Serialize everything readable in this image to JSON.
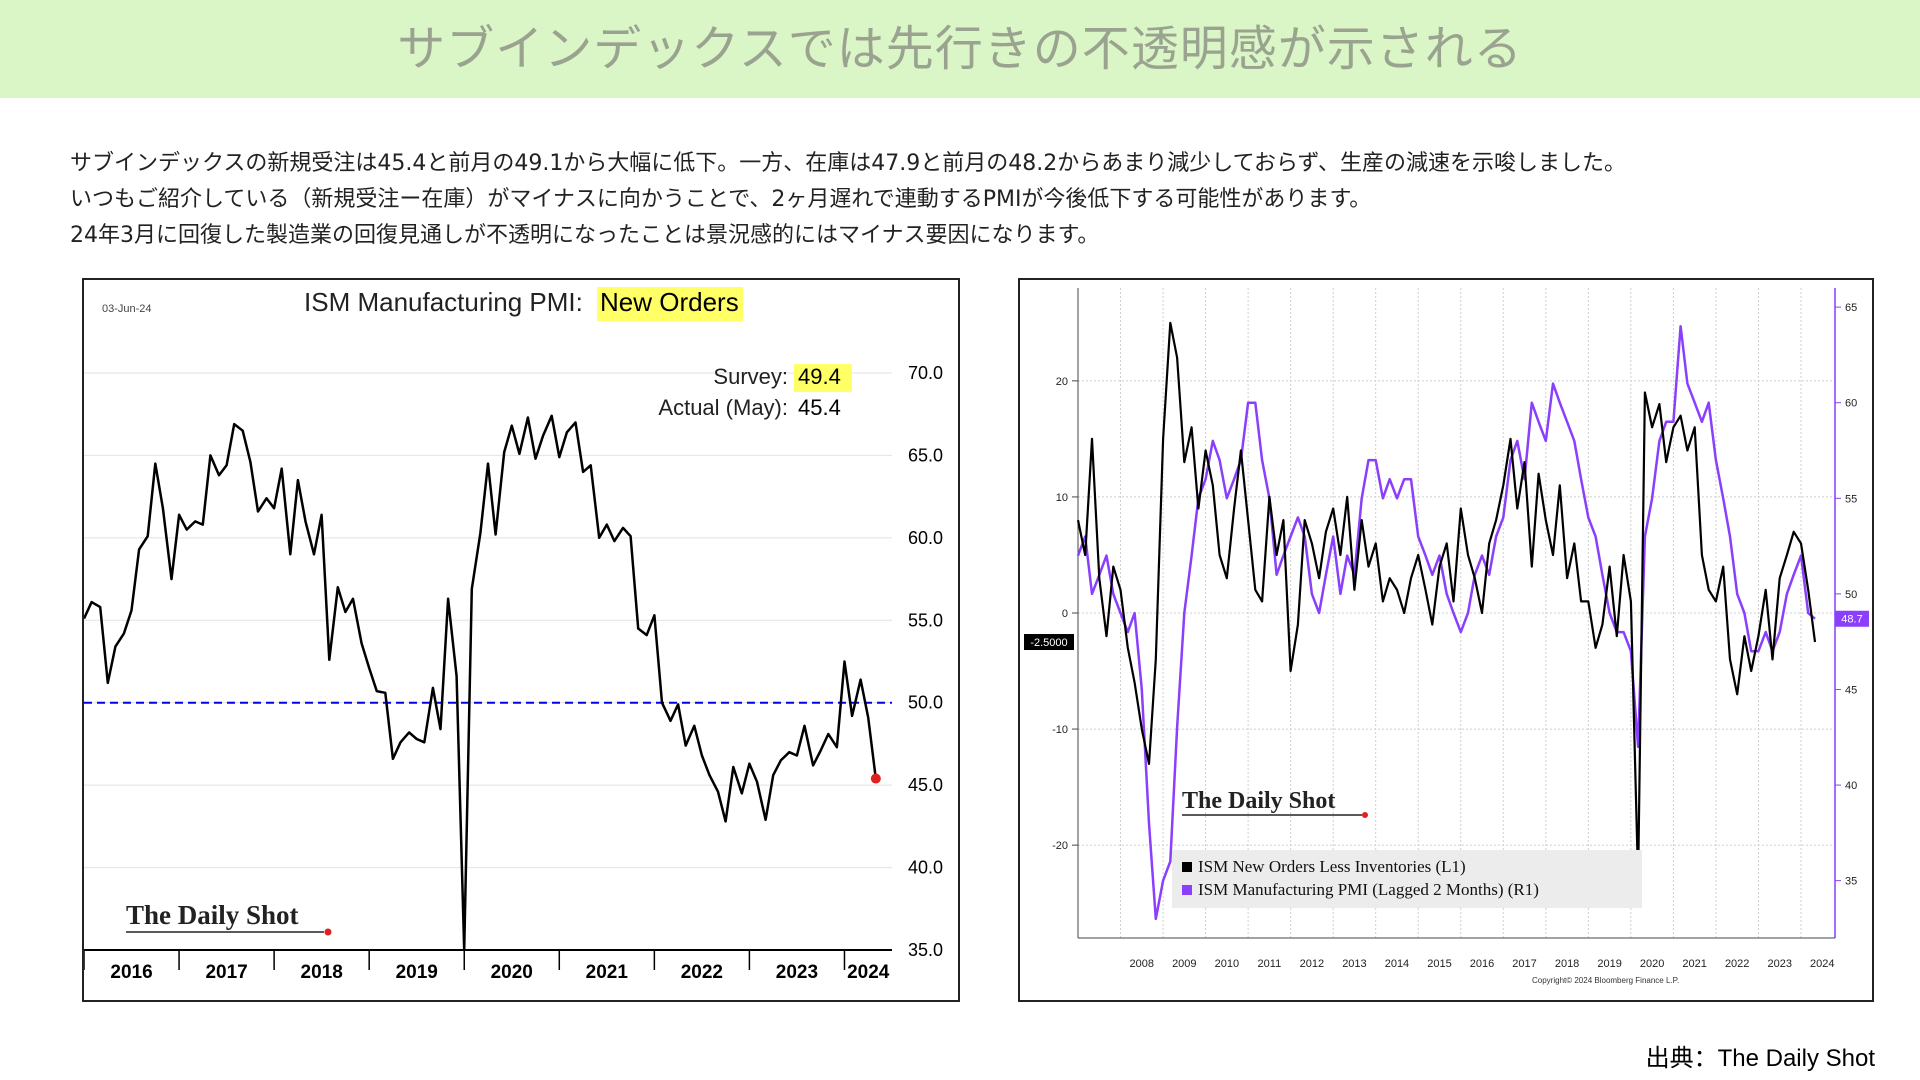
{
  "banner": {
    "title": "サブインデックスでは先行きの不透明感が示される"
  },
  "description": {
    "lines": [
      "サブインデックスの新規受注は45.4と前月の49.1から大幅に低下。一方、在庫は47.9と前月の48.2からあまり減少しておらず、生産の減速を示唆しました。",
      "いつもご紹介している（新規受注ー在庫）がマイナスに向かうことで、2ヶ月遅れで連動するPMIが今後低下する可能性があります。",
      "24年3月に回復した製造業の回復見通しが不透明になったことは景況感的にはマイナス要因になります。"
    ]
  },
  "source": "出典：The Daily Shot",
  "chart_data": [
    {
      "type": "line",
      "title_prefix": "ISM Manufacturing PMI: ",
      "title_highlight": "New Orders",
      "date_label": "03-Jun-24",
      "brand": "The Daily Shot",
      "survey_label": "Survey:",
      "survey_value": "49.4",
      "actual_label": "Actual (May):",
      "actual_value": "45.4",
      "x_ticks": [
        "2016",
        "2017",
        "2018",
        "2019",
        "2020",
        "2021",
        "2022",
        "2023",
        "2024"
      ],
      "y_ticks": [
        "70.0",
        "65.0",
        "60.0",
        "55.0",
        "50.0",
        "45.0",
        "40.0",
        "35.0"
      ],
      "ylim": [
        35,
        72
      ],
      "xlim": [
        2016.0,
        2024.5
      ],
      "reference_line": 50,
      "colors": {
        "line": "#000000",
        "reference": "#0000ee",
        "marker": "#e02020",
        "highlight": "#ffff66"
      },
      "series": [
        {
          "x": [
            2016.0,
            2016.08,
            2016.17,
            2016.25,
            2016.33,
            2016.42,
            2016.5,
            2016.58,
            2016.67,
            2016.75,
            2016.83,
            2016.92,
            2017.0,
            2017.08,
            2017.17,
            2017.25,
            2017.33,
            2017.42,
            2017.5,
            2017.58,
            2017.67,
            2017.75,
            2017.83,
            2017.92,
            2018.0,
            2018.08,
            2018.17,
            2018.25,
            2018.33,
            2018.42,
            2018.5,
            2018.58,
            2018.67,
            2018.75,
            2018.83,
            2018.92,
            2019.0,
            2019.08,
            2019.17,
            2019.25,
            2019.33,
            2019.42,
            2019.5,
            2019.58,
            2019.67,
            2019.75,
            2019.83,
            2019.92,
            2020.0,
            2020.08,
            2020.17,
            2020.25,
            2020.33,
            2020.42,
            2020.5,
            2020.58,
            2020.67,
            2020.75,
            2020.83,
            2020.92,
            2021.0,
            2021.08,
            2021.17,
            2021.25,
            2021.33,
            2021.42,
            2021.5,
            2021.58,
            2021.67,
            2021.75,
            2021.83,
            2021.92,
            2022.0,
            2022.08,
            2022.17,
            2022.25,
            2022.33,
            2022.42,
            2022.5,
            2022.58,
            2022.67,
            2022.75,
            2022.83,
            2022.92,
            2023.0,
            2023.08,
            2023.17,
            2023.25,
            2023.33,
            2023.42,
            2023.5,
            2023.58,
            2023.67,
            2023.75,
            2023.83,
            2023.92,
            2024.0,
            2024.08,
            2024.17,
            2024.25,
            2024.33
          ],
          "y": [
            55.1,
            56.1,
            55.8,
            51.2,
            53.4,
            54.2,
            55.6,
            59.3,
            60.1,
            64.5,
            61.8,
            57.5,
            61.4,
            60.5,
            61.0,
            60.8,
            65.0,
            63.8,
            64.4,
            66.9,
            66.5,
            64.6,
            61.6,
            62.4,
            61.8,
            64.2,
            59.0,
            63.5,
            61.0,
            59.0,
            61.4,
            52.6,
            57.0,
            55.5,
            56.3,
            53.6,
            52.1,
            50.7,
            50.6,
            46.6,
            47.6,
            48.2,
            47.8,
            47.6,
            50.9,
            48.4,
            56.3,
            51.6,
            35.0,
            56.9,
            60.3,
            64.5,
            60.2,
            65.2,
            66.8,
            65.1,
            67.3,
            64.8,
            66.2,
            67.4,
            64.9,
            66.4,
            67.0,
            64.0,
            64.4,
            60.0,
            60.8,
            59.8,
            60.6,
            60.1,
            54.5,
            54.1,
            55.3,
            50.0,
            48.9,
            49.9,
            47.4,
            48.6,
            46.8,
            45.6,
            44.6,
            42.8,
            46.1,
            44.5,
            46.3,
            45.2,
            42.9,
            45.6,
            46.5,
            47.0,
            46.8,
            48.6,
            46.2,
            47.1,
            48.1,
            47.3,
            52.5,
            49.2,
            51.4,
            49.1,
            45.4
          ]
        }
      ]
    },
    {
      "type": "line",
      "brand": "The Daily Shot",
      "copyright": "Copyright© 2024 Bloomberg Finance L.P.",
      "x_ticks": [
        "2008",
        "2009",
        "2010",
        "2011",
        "2012",
        "2013",
        "2014",
        "2015",
        "2016",
        "2017",
        "2018",
        "2019",
        "2020",
        "2021",
        "2022",
        "2023",
        "2024"
      ],
      "left_y_ticks": [
        "20",
        "10",
        "0",
        "-10",
        "-20"
      ],
      "right_y_ticks": [
        "65",
        "60",
        "55",
        "50",
        "45",
        "40",
        "35"
      ],
      "left_ylim": [
        -28,
        28
      ],
      "right_ylim": [
        32,
        66
      ],
      "xlim": [
        2007.0,
        2024.8
      ],
      "left_current_label": "-2.5000",
      "right_current_label": "48.7",
      "colors": {
        "l1": "#000000",
        "r1": "#8a3ffc"
      },
      "series": [
        {
          "name": "ISM New Orders Less Inventories (L1)",
          "axis": "left",
          "x": [
            2007.0,
            2007.17,
            2007.33,
            2007.5,
            2007.67,
            2007.83,
            2008.0,
            2008.17,
            2008.33,
            2008.5,
            2008.67,
            2008.83,
            2009.0,
            2009.17,
            2009.33,
            2009.5,
            2009.67,
            2009.83,
            2010.0,
            2010.17,
            2010.33,
            2010.5,
            2010.67,
            2010.83,
            2011.0,
            2011.17,
            2011.33,
            2011.5,
            2011.67,
            2011.83,
            2012.0,
            2012.17,
            2012.33,
            2012.5,
            2012.67,
            2012.83,
            2013.0,
            2013.17,
            2013.33,
            2013.5,
            2013.67,
            2013.83,
            2014.0,
            2014.17,
            2014.33,
            2014.5,
            2014.67,
            2014.83,
            2015.0,
            2015.17,
            2015.33,
            2015.5,
            2015.67,
            2015.83,
            2016.0,
            2016.17,
            2016.33,
            2016.5,
            2016.67,
            2016.83,
            2017.0,
            2017.17,
            2017.33,
            2017.5,
            2017.67,
            2017.83,
            2018.0,
            2018.17,
            2018.33,
            2018.5,
            2018.67,
            2018.83,
            2019.0,
            2019.17,
            2019.33,
            2019.5,
            2019.67,
            2019.83,
            2020.0,
            2020.17,
            2020.33,
            2020.5,
            2020.67,
            2020.83,
            2021.0,
            2021.17,
            2021.33,
            2021.5,
            2021.67,
            2021.83,
            2022.0,
            2022.17,
            2022.33,
            2022.5,
            2022.67,
            2022.83,
            2023.0,
            2023.17,
            2023.33,
            2023.5,
            2023.67,
            2023.83,
            2024.0,
            2024.17,
            2024.33
          ],
          "y": [
            8,
            5,
            15,
            3,
            -2,
            4,
            2,
            -3,
            -6,
            -10,
            -13,
            -4,
            15,
            25,
            22,
            13,
            16,
            9,
            14,
            11,
            5,
            3,
            9,
            14,
            8,
            2,
            1,
            10,
            5,
            8,
            -5,
            -1,
            8,
            6,
            3,
            7,
            9,
            5,
            10,
            2,
            8,
            4,
            6,
            1,
            3,
            2,
            0,
            3,
            5,
            2,
            -1,
            4,
            6,
            1,
            9,
            5,
            3,
            0,
            6,
            8,
            11,
            15,
            9,
            13,
            4,
            12,
            8,
            5,
            11,
            3,
            6,
            1,
            1,
            -3,
            -1,
            4,
            -2,
            5,
            1,
            -23,
            19,
            16,
            18,
            13,
            16,
            17,
            14,
            16,
            5,
            2,
            1,
            4,
            -4,
            -7,
            -2,
            -5,
            -2,
            2,
            -4,
            3,
            5,
            7,
            6,
            2,
            -2.5
          ]
        },
        {
          "name": "ISM Manufacturing PMI (Lagged 2 Months) (R1)",
          "axis": "right",
          "x": [
            2007.0,
            2007.17,
            2007.33,
            2007.5,
            2007.67,
            2007.83,
            2008.0,
            2008.17,
            2008.33,
            2008.5,
            2008.67,
            2008.83,
            2009.0,
            2009.17,
            2009.33,
            2009.5,
            2009.67,
            2009.83,
            2010.0,
            2010.17,
            2010.33,
            2010.5,
            2010.67,
            2010.83,
            2011.0,
            2011.17,
            2011.33,
            2011.5,
            2011.67,
            2011.83,
            2012.0,
            2012.17,
            2012.33,
            2012.5,
            2012.67,
            2012.83,
            2013.0,
            2013.17,
            2013.33,
            2013.5,
            2013.67,
            2013.83,
            2014.0,
            2014.17,
            2014.33,
            2014.5,
            2014.67,
            2014.83,
            2015.0,
            2015.17,
            2015.33,
            2015.5,
            2015.67,
            2015.83,
            2016.0,
            2016.17,
            2016.33,
            2016.5,
            2016.67,
            2016.83,
            2017.0,
            2017.17,
            2017.33,
            2017.5,
            2017.67,
            2017.83,
            2018.0,
            2018.17,
            2018.33,
            2018.5,
            2018.67,
            2018.83,
            2019.0,
            2019.17,
            2019.33,
            2019.5,
            2019.67,
            2019.83,
            2020.0,
            2020.17,
            2020.33,
            2020.5,
            2020.67,
            2020.83,
            2021.0,
            2021.17,
            2021.33,
            2021.5,
            2021.67,
            2021.83,
            2022.0,
            2022.17,
            2022.33,
            2022.5,
            2022.67,
            2022.83,
            2023.0,
            2023.17,
            2023.33,
            2023.5,
            2023.67,
            2023.83,
            2024.0,
            2024.17,
            2024.33
          ],
          "y": [
            52,
            53,
            50,
            51,
            52,
            50,
            49,
            48,
            49,
            45,
            38,
            33,
            35,
            36,
            43,
            49,
            52,
            55,
            56,
            58,
            57,
            55,
            56,
            57,
            60,
            60,
            57,
            55,
            51,
            52,
            53,
            54,
            53,
            50,
            49,
            51,
            53,
            50,
            52,
            51,
            55,
            57,
            57,
            55,
            56,
            55,
            56,
            56,
            53,
            52,
            51,
            52,
            50,
            49,
            48,
            49,
            51,
            52,
            51,
            53,
            54,
            57,
            58,
            56,
            60,
            59,
            58,
            61,
            60,
            59,
            58,
            56,
            54,
            53,
            51,
            49,
            48,
            48,
            47,
            42,
            53,
            55,
            58,
            59,
            59,
            64,
            61,
            60,
            59,
            60,
            57,
            55,
            53,
            50,
            49,
            47,
            47,
            48,
            47,
            48,
            50,
            51,
            52,
            49,
            48.7
          ]
        }
      ]
    }
  ]
}
